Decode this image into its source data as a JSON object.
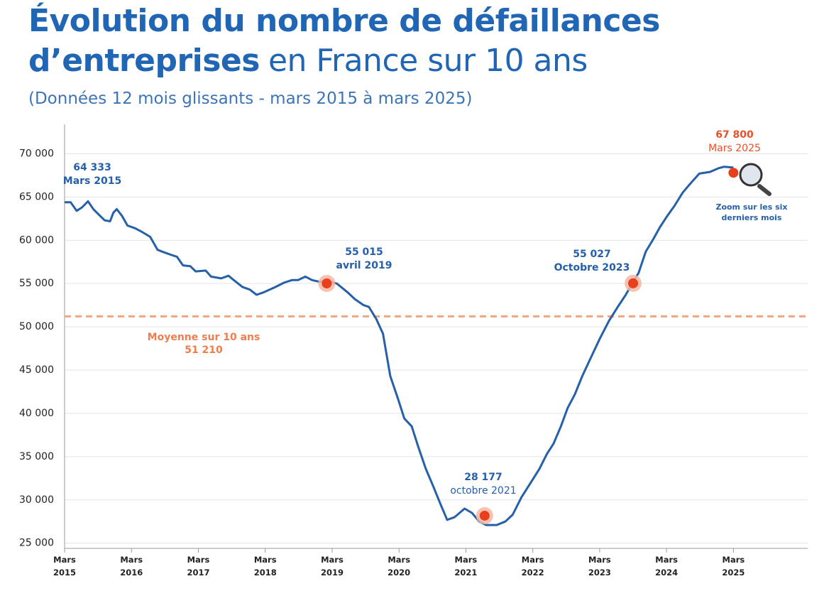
{
  "chart_data": {
    "type": "line",
    "title": {
      "line1": "Évolution du nombre de défaillances",
      "line2_bold": "d’entreprises",
      "line2": "en France sur 10 ans"
    },
    "subtitle": "(Données 12 mois glissants - mars 2015 à mars 2025)",
    "series": [
      {
        "name": "Défaillances d’entreprises",
        "color": "#2560a8",
        "x": [
          2015.17,
          2015.26,
          2015.35,
          2015.43,
          2015.52,
          2015.6,
          2015.69,
          2015.77,
          2015.85,
          2015.9,
          2015.95,
          2016.03,
          2016.11,
          2016.22,
          2016.32,
          2016.45,
          2016.56,
          2016.66,
          2016.77,
          2016.85,
          2016.94,
          2017.05,
          2017.13,
          2017.28,
          2017.36,
          2017.51,
          2017.62,
          2017.7,
          2017.83,
          2017.94,
          2018.04,
          2018.15,
          2018.32,
          2018.45,
          2018.57,
          2018.66,
          2018.77,
          2018.87,
          2018.98,
          2019.09,
          2019.24,
          2019.4,
          2019.51,
          2019.64,
          2019.72,
          2019.83,
          2019.93,
          2020.04,
          2020.15,
          2020.25,
          2020.36,
          2020.46,
          2020.57,
          2020.68,
          2020.78,
          2020.89,
          2021.0,
          2021.15,
          2021.26,
          2021.37,
          2021.47,
          2021.63,
          2021.76,
          2021.87,
          2022.0,
          2022.14,
          2022.27,
          2022.38,
          2022.48,
          2022.59,
          2022.69,
          2022.8,
          2022.91,
          2023.03,
          2023.17,
          2023.31,
          2023.44,
          2023.56,
          2023.67,
          2023.75,
          2023.86,
          2023.97,
          2024.07,
          2024.18,
          2024.29,
          2024.41,
          2024.52,
          2024.66,
          2024.82,
          2024.94,
          2025.03,
          2025.17
        ],
        "values": [
          64400,
          64400,
          63400,
          63800,
          64500,
          63600,
          62900,
          62300,
          62200,
          63200,
          63600,
          62800,
          61700,
          61400,
          61000,
          60400,
          58900,
          58600,
          58300,
          58100,
          57100,
          57000,
          56400,
          56500,
          55800,
          55600,
          55900,
          55400,
          54600,
          54300,
          53700,
          54000,
          54600,
          55100,
          55400,
          55400,
          55800,
          55400,
          55200,
          55300,
          55000,
          54000,
          53200,
          52500,
          52300,
          50900,
          49200,
          44300,
          41800,
          39400,
          38500,
          36100,
          33600,
          31600,
          29700,
          27700,
          28000,
          29000,
          28500,
          27500,
          27100,
          27100,
          27500,
          28300,
          30300,
          32000,
          33600,
          35300,
          36500,
          38500,
          40600,
          42200,
          44300,
          46300,
          48600,
          50700,
          52300,
          53700,
          55200,
          56200,
          58700,
          60100,
          61500,
          62800,
          64000,
          65500,
          66500,
          67700,
          67900,
          68300,
          68500,
          68400
        ]
      }
    ],
    "xlim": [
      2015.17,
      2026.28
    ],
    "xticks": [
      {
        "value": 2015.17,
        "label": "Mars 2015"
      },
      {
        "value": 2016.17,
        "label": "Mars 2016"
      },
      {
        "value": 2017.17,
        "label": "Mars 2017"
      },
      {
        "value": 2018.17,
        "label": "Mars 2018"
      },
      {
        "value": 2019.17,
        "label": "Mars 2019"
      },
      {
        "value": 2020.17,
        "label": "Mars 2020"
      },
      {
        "value": 2021.17,
        "label": "Mars 2021"
      },
      {
        "value": 2022.17,
        "label": "Mars 2022"
      },
      {
        "value": 2023.17,
        "label": "Mars 2023"
      },
      {
        "value": 2024.17,
        "label": "Mars 2024"
      },
      {
        "value": 2025.17,
        "label": "Mars 2025"
      }
    ],
    "ylim": [
      24400,
      73400
    ],
    "yticks": [
      {
        "value": 25000,
        "label": "25 000"
      },
      {
        "value": 30000,
        "label": "30 000"
      },
      {
        "value": 35000,
        "label": "35 000"
      },
      {
        "value": 40000,
        "label": "40 000"
      },
      {
        "value": 45000,
        "label": "45 000"
      },
      {
        "value": 50000,
        "label": "50 000"
      },
      {
        "value": 55000,
        "label": "55 000"
      },
      {
        "value": 60000,
        "label": "60 000"
      },
      {
        "value": 65000,
        "label": "65 000"
      },
      {
        "value": 70000,
        "label": "70 000"
      }
    ],
    "grid": true,
    "average": {
      "label": "Moyenne sur 10 ans",
      "value": 51210,
      "value_label": "51 210",
      "color": "#f4a57e"
    },
    "annotations": [
      {
        "x": 2015.17,
        "value": 64333,
        "value_label": "64 333",
        "date_label": "Mars 2015",
        "marker": false,
        "color": "#2560a8"
      },
      {
        "x": 2019.09,
        "value": 55015,
        "value_label": "55 015",
        "date_label": "avril 2019",
        "marker": true,
        "color": "#2560a8"
      },
      {
        "x": 2021.45,
        "value": 28177,
        "value_label": "28 177",
        "date_label": "octobre 2021",
        "marker": true,
        "color": "#2560a8"
      },
      {
        "x": 2023.67,
        "value": 55027,
        "value_label": "55 027",
        "date_label": "Octobre 2023",
        "marker": true,
        "color": "#2560a8"
      },
      {
        "x": 2025.17,
        "value": 67800,
        "value_label": "67 800",
        "date_label": "Mars 2025",
        "marker": true,
        "color": "#e8502a"
      }
    ],
    "zoom_label": "Zoom sur les six derniers mois"
  }
}
